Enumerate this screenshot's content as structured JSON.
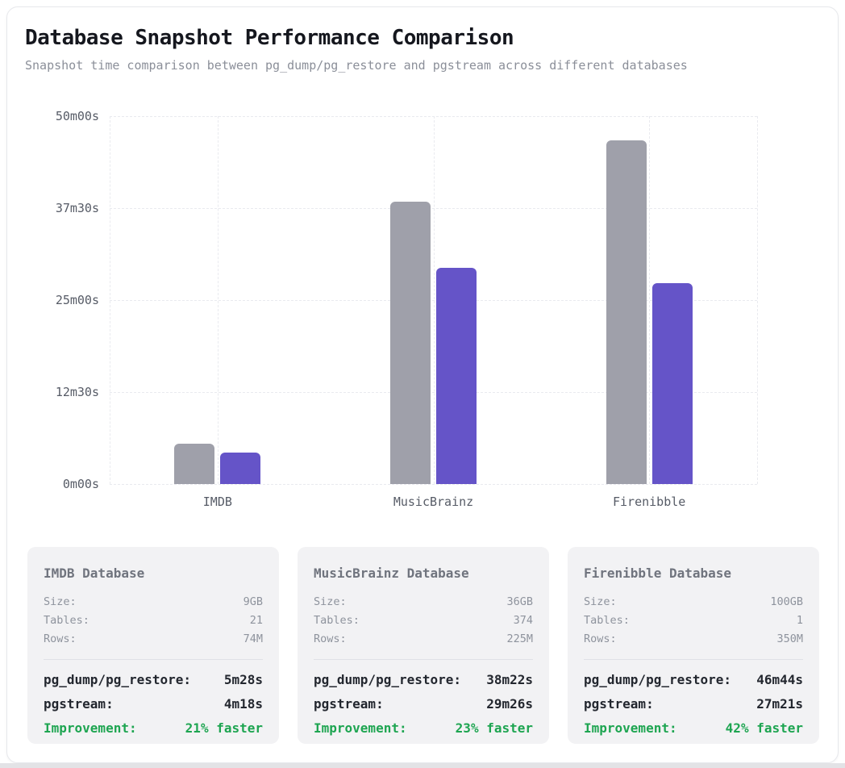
{
  "header": {
    "title": "Database Snapshot Performance Comparison",
    "subtitle": "Snapshot time comparison between pg_dump/pg_restore and pgstream across different databases"
  },
  "chart_data": {
    "type": "bar",
    "title": "Database Snapshot Performance Comparison",
    "categories": [
      "IMDB",
      "MusicBrainz",
      "Firenibble"
    ],
    "series": [
      {
        "name": "pg_dump/pg_restore",
        "color": "#9fa0aa",
        "values_seconds": [
          328,
          2302,
          2804
        ],
        "value_labels": [
          "5m28s",
          "38m22s",
          "46m44s"
        ]
      },
      {
        "name": "pgstream",
        "color": "#6554c8",
        "values_seconds": [
          258,
          1766,
          1641
        ],
        "value_labels": [
          "4m18s",
          "29m26s",
          "27m21s"
        ]
      }
    ],
    "y_ticks": [
      "50m00s",
      "37m30s",
      "25m00s",
      "12m30s",
      "0m00s"
    ],
    "ylim_seconds": [
      0,
      3000
    ],
    "grid": "dashed",
    "legend_position": "none"
  },
  "colors": {
    "bar_gray": "#9fa0aa",
    "bar_purple": "#6554c8",
    "improvement_green": "#1ea551",
    "card_background": "#f2f2f4"
  },
  "cards": [
    {
      "title": "IMDB Database",
      "stats": [
        {
          "label": "Size:",
          "value": "9GB"
        },
        {
          "label": "Tables:",
          "value": "21"
        },
        {
          "label": "Rows:",
          "value": "74M"
        }
      ],
      "results": [
        {
          "label": "pg_dump/pg_restore:",
          "value": "5m28s"
        },
        {
          "label": "pgstream:",
          "value": "4m18s"
        }
      ],
      "improvement": {
        "label": "Improvement:",
        "value": "21% faster"
      }
    },
    {
      "title": "MusicBrainz Database",
      "stats": [
        {
          "label": "Size:",
          "value": "36GB"
        },
        {
          "label": "Tables:",
          "value": "374"
        },
        {
          "label": "Rows:",
          "value": "225M"
        }
      ],
      "results": [
        {
          "label": "pg_dump/pg_restore:",
          "value": "38m22s"
        },
        {
          "label": "pgstream:",
          "value": "29m26s"
        }
      ],
      "improvement": {
        "label": "Improvement:",
        "value": "23% faster"
      }
    },
    {
      "title": "Firenibble Database",
      "stats": [
        {
          "label": "Size:",
          "value": "100GB"
        },
        {
          "label": "Tables:",
          "value": "1"
        },
        {
          "label": "Rows:",
          "value": "350M"
        }
      ],
      "results": [
        {
          "label": "pg_dump/pg_restore:",
          "value": "46m44s"
        },
        {
          "label": "pgstream:",
          "value": "27m21s"
        }
      ],
      "improvement": {
        "label": "Improvement:",
        "value": "42% faster"
      }
    }
  ]
}
